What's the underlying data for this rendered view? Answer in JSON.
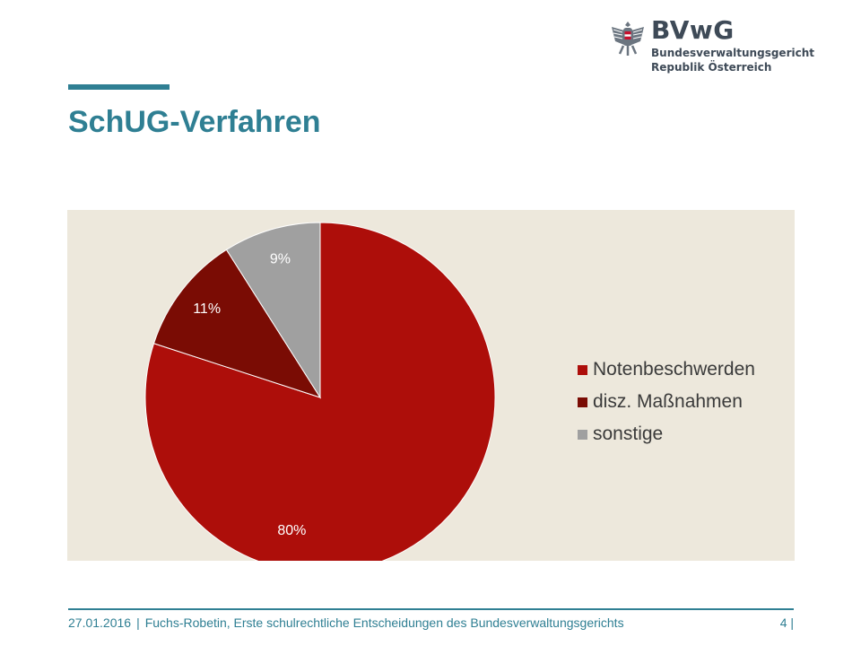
{
  "logo": {
    "abbr": "BVwG",
    "line1": "Bundesverwaltungsgericht",
    "line2": "Republik Österreich",
    "icon": "eagle-emblem-icon"
  },
  "slide": {
    "title": "SchUG-Verfahren"
  },
  "chart_data": {
    "type": "pie",
    "categories": [
      "Notenbeschwerden",
      "disz. Maßnahmen",
      "sonstige"
    ],
    "values": [
      80,
      11,
      9
    ],
    "labels": [
      "80%",
      "11%",
      "9%"
    ],
    "colors": [
      "#ad0e0a",
      "#7a0c04",
      "#a0a0a0"
    ],
    "legend_position": "right",
    "start_angle_deg": 0,
    "direction": "clockwise",
    "background": "#ede8dc"
  },
  "footer": {
    "date": "27.01.2016",
    "separator": "|",
    "text": "Fuchs-Robetin, Erste schulrechtliche Entscheidungen des Bundesverwaltungsgerichts",
    "page": "4 |"
  }
}
